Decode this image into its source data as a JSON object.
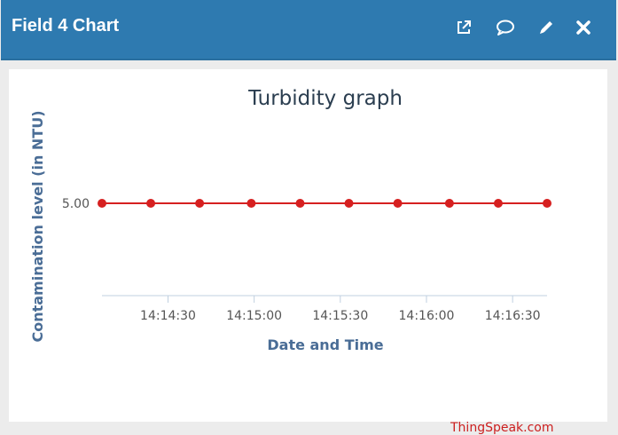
{
  "window": {
    "title": "Field 4 Chart",
    "icons": [
      "external-link-icon",
      "comment-icon",
      "pencil-icon",
      "close-icon"
    ]
  },
  "chart_data": {
    "type": "line",
    "title": "Turbidity graph",
    "xlabel": "Date and Time",
    "ylabel": "Contamination level (in NTU)",
    "ytick_labels": [
      "5.00"
    ],
    "xtick_labels": [
      "14:14:30",
      "14:15:00",
      "14:15:30",
      "14:16:00",
      "14:16:30"
    ],
    "x": [
      "14:14:07",
      "14:14:24",
      "14:14:41",
      "14:14:59",
      "14:15:16",
      "14:15:33",
      "14:15:50",
      "14:16:08",
      "14:16:25",
      "14:16:42"
    ],
    "series": [
      {
        "values": [
          5,
          5,
          5,
          5,
          5,
          5,
          5,
          5,
          5,
          5
        ],
        "color": "#d62020"
      }
    ],
    "grid": false,
    "legend": "none"
  },
  "credit": "ThingSpeak.com"
}
